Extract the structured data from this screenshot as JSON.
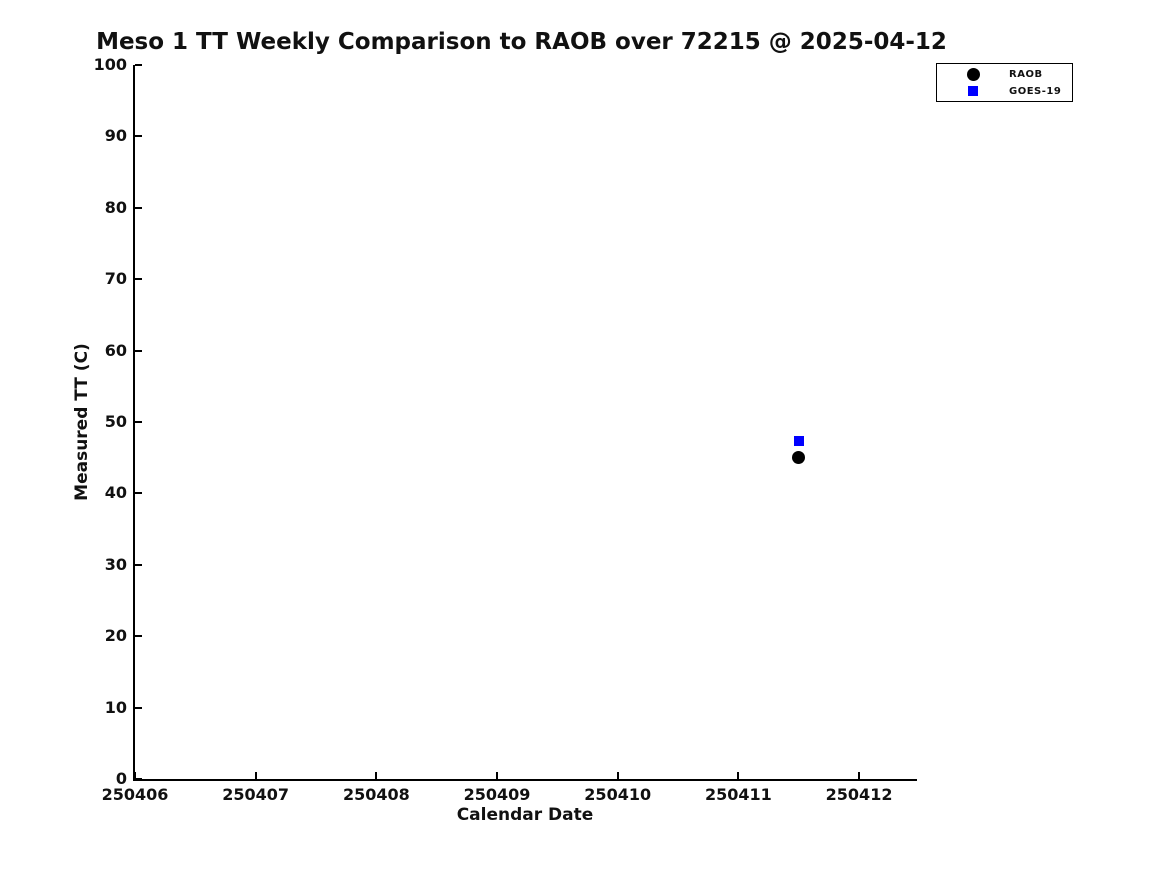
{
  "chart_data": {
    "type": "scatter",
    "title": "Meso 1 TT Weekly Comparison to RAOB over 72215 @ 2025-04-12",
    "xlabel": "Calendar Date",
    "ylabel": "Measured TT (C)",
    "xlim": [
      250406,
      250412.48
    ],
    "ylim": [
      0,
      100
    ],
    "x_ticks": [
      250406,
      250407,
      250408,
      250409,
      250410,
      250411,
      250412
    ],
    "y_ticks": [
      0,
      10,
      20,
      30,
      40,
      50,
      60,
      70,
      80,
      90,
      100
    ],
    "grid": false,
    "legend_position": "upper right",
    "series": [
      {
        "name": "RAOB",
        "marker": "circle",
        "color": "#000000",
        "points": [
          {
            "x": 250411.5,
            "y": 45.0
          }
        ]
      },
      {
        "name": "GOES-19",
        "marker": "square",
        "color": "#0000ff",
        "points": [
          {
            "x": 250411.5,
            "y": 47.3
          }
        ]
      }
    ]
  },
  "colors": {
    "background": "#ffffff",
    "text": "#111111",
    "spine": "#000000",
    "raob": "#000000",
    "goes19": "#0000ff"
  }
}
